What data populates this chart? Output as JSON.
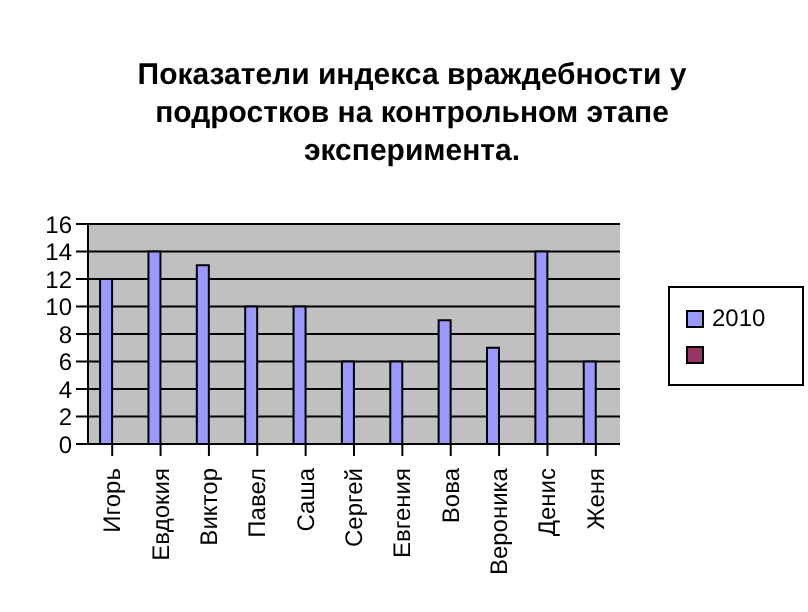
{
  "chart_data": {
    "type": "bar",
    "title": "Показатели индекса враждебности у подростков на контрольном этапе эксперимента.",
    "categories": [
      "Игорь",
      "Евдокия",
      "Виктор",
      "Павел",
      "Саша",
      "Сергей",
      "Евгения",
      "Вова",
      "Вероника",
      "Денис",
      "Женя"
    ],
    "series": [
      {
        "name": "2010",
        "color": "#9999ff",
        "values": [
          12,
          14,
          13,
          10,
          10,
          6,
          6,
          9,
          7,
          14,
          6
        ]
      },
      {
        "color": "#993366",
        "values": [
          null,
          null,
          null,
          null,
          null,
          null,
          null,
          null,
          null,
          null,
          null
        ]
      }
    ],
    "ylim": [
      0,
      16
    ],
    "yticks": [
      0,
      2,
      4,
      6,
      8,
      10,
      12,
      14,
      16
    ],
    "grid": "y",
    "legend": "right"
  }
}
